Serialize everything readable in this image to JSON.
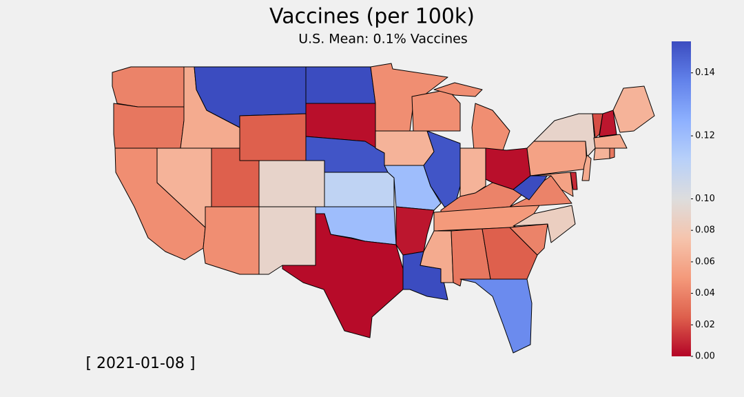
{
  "chart_data": {
    "type": "choropleth",
    "title": "Vaccines (per 100k)",
    "subtitle": "U.S. Mean: 0.1% Vaccines",
    "date": "[ 2021-01-08 ]",
    "colormap": "coolwarm_r",
    "values": [
      0.04,
      0.035,
      0.045,
      0.06,
      0.065,
      0.15,
      0.025,
      0.025,
      0.045,
      0.09,
      0.09,
      0.15,
      0.003,
      0.148,
      0.11,
      0.12,
      0.002,
      0.045,
      0.065,
      0.12,
      0.005,
      0.15,
      0.045,
      0.148,
      0.045,
      0.065,
      0.003,
      0.04,
      0.05,
      0.06,
      0.035,
      0.025,
      0.135,
      0.04,
      0.085,
      0.04,
      0.15,
      0.055,
      0.09,
      0.06,
      0.055,
      0.01,
      0.02,
      0.005,
      0.065,
      0.06,
      0.065,
      0.035
    ],
    "clim": [
      0,
      0.15
    ],
    "ccenter": 0.1,
    "cticks": [
      {
        "value": 0,
        "label": "0.00"
      },
      {
        "value": 0.02,
        "label": "0.02"
      },
      {
        "value": 0.04,
        "label": "0.04"
      },
      {
        "value": 0.06,
        "label": "0.06"
      },
      {
        "value": 0.08,
        "label": "0.08"
      },
      {
        "value": 0.1,
        "label": "0.10"
      },
      {
        "value": 0.12,
        "label": "0.12"
      },
      {
        "value": 0.14,
        "label": "0.14"
      }
    ]
  }
}
